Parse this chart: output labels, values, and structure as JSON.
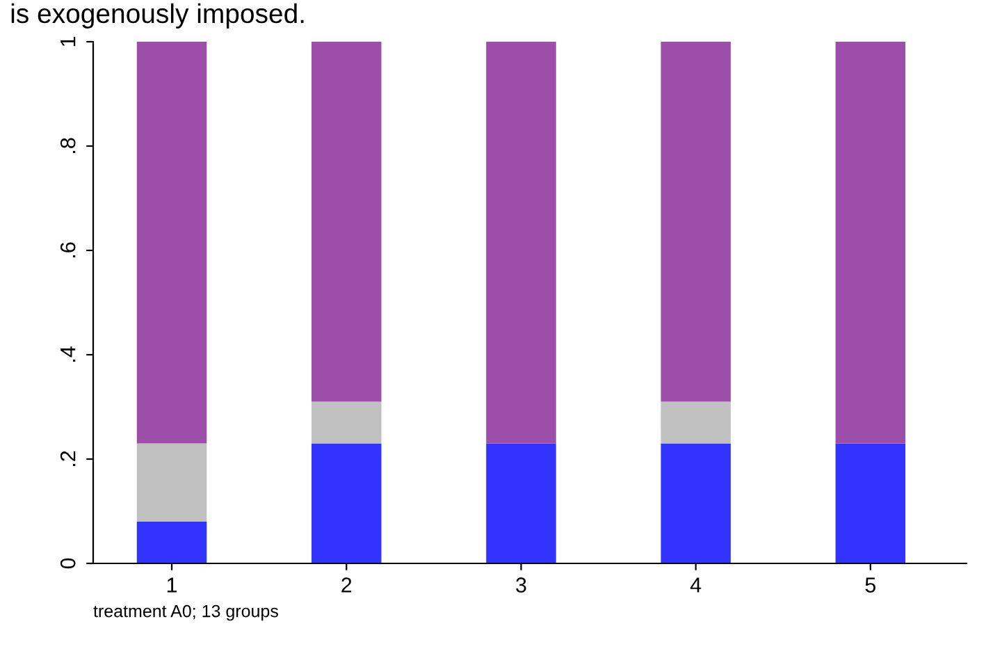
{
  "chart_data": {
    "type": "bar",
    "stacked": true,
    "categories": [
      "1",
      "2",
      "3",
      "4",
      "5"
    ],
    "series": [
      {
        "color": "#3333ff",
        "values": [
          0.08,
          0.23,
          0.23,
          0.23,
          0.23
        ]
      },
      {
        "color": "#c0c0c0",
        "values": [
          0.15,
          0.08,
          0,
          0.08,
          0
        ]
      },
      {
        "color": "#9b4fa8",
        "values": [
          0.77,
          0.69,
          0.77,
          0.69,
          0.77
        ]
      }
    ],
    "ylim": [
      0,
      1
    ],
    "yticks": [
      0,
      {
        "value": 0.2,
        "label": ".2"
      },
      {
        "value": 0.4,
        "label": ".4"
      },
      {
        "value": 0.6,
        "label": ".6"
      },
      {
        "value": 0.8,
        "label": ".8"
      },
      1
    ],
    "xlabel": "treatment A0; 13 groups",
    "annotations": [
      "is exogenously imposed."
    ],
    "grid": false,
    "legend": false
  }
}
